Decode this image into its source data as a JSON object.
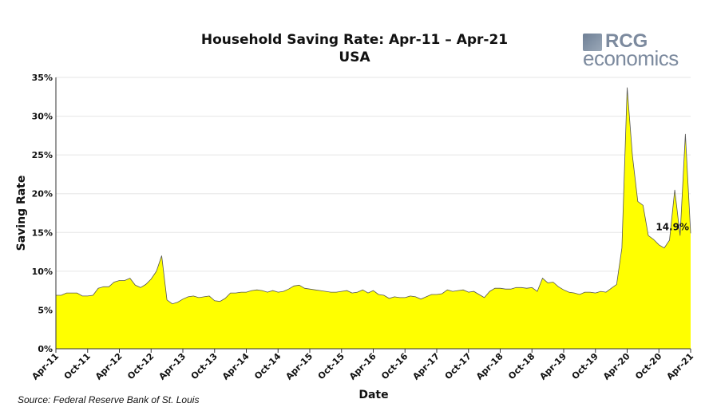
{
  "brand": {
    "logo_top": "RCG",
    "logo_bottom": "economics"
  },
  "source": "Source: Federal Reserve Bank of St. Louis",
  "chart_data": {
    "type": "area",
    "title": "Household Saving Rate: Apr-11 – Apr-21",
    "subtitle": "USA",
    "xlabel": "Date",
    "ylabel": "Saving Rate",
    "ylim": [
      0,
      35
    ],
    "yticks": [
      "0%",
      "5%",
      "10%",
      "15%",
      "20%",
      "25%",
      "30%",
      "35%"
    ],
    "xticks": [
      "Apr-11",
      "Oct-11",
      "Apr-12",
      "Oct-12",
      "Apr-13",
      "Oct-13",
      "Apr-14",
      "Oct-14",
      "Apr-15",
      "Oct-15",
      "Apr-16",
      "Oct-16",
      "Apr-17",
      "Oct-17",
      "Apr-18",
      "Oct-18",
      "Apr-19",
      "Oct-19",
      "Apr-20",
      "Oct-20",
      "Apr-21"
    ],
    "grid": true,
    "fill_color": "#ffff00",
    "line_color": "#555555",
    "annotation": "14.9%",
    "frequency": "monthly",
    "start": "Apr-11",
    "end": "Apr-21",
    "values": [
      6.9,
      6.9,
      7.2,
      7.2,
      7.2,
      6.8,
      6.8,
      6.9,
      7.8,
      8.0,
      8.0,
      8.6,
      8.8,
      8.8,
      9.1,
      8.2,
      7.9,
      8.3,
      9.0,
      10.0,
      12.0,
      6.3,
      5.8,
      6.0,
      6.4,
      6.7,
      6.8,
      6.6,
      6.7,
      6.8,
      6.2,
      6.1,
      6.5,
      7.2,
      7.2,
      7.3,
      7.3,
      7.5,
      7.6,
      7.5,
      7.3,
      7.5,
      7.3,
      7.4,
      7.7,
      8.1,
      8.2,
      7.8,
      7.7,
      7.6,
      7.5,
      7.4,
      7.3,
      7.3,
      7.4,
      7.5,
      7.2,
      7.3,
      7.6,
      7.2,
      7.5,
      7.0,
      6.9,
      6.5,
      6.7,
      6.6,
      6.6,
      6.8,
      6.7,
      6.4,
      6.7,
      7.0,
      7.0,
      7.1,
      7.6,
      7.4,
      7.5,
      7.6,
      7.3,
      7.4,
      7.0,
      6.6,
      7.4,
      7.8,
      7.8,
      7.7,
      7.7,
      7.9,
      7.9,
      7.8,
      7.9,
      7.4,
      9.1,
      8.5,
      8.6,
      8.0,
      7.6,
      7.3,
      7.2,
      7.0,
      7.3,
      7.3,
      7.2,
      7.4,
      7.3,
      7.8,
      8.3,
      13.0,
      33.7,
      24.9,
      19.0,
      18.5,
      14.6,
      14.1,
      13.4,
      13.0,
      14.0,
      20.5,
      14.6,
      27.7,
      14.9
    ]
  }
}
